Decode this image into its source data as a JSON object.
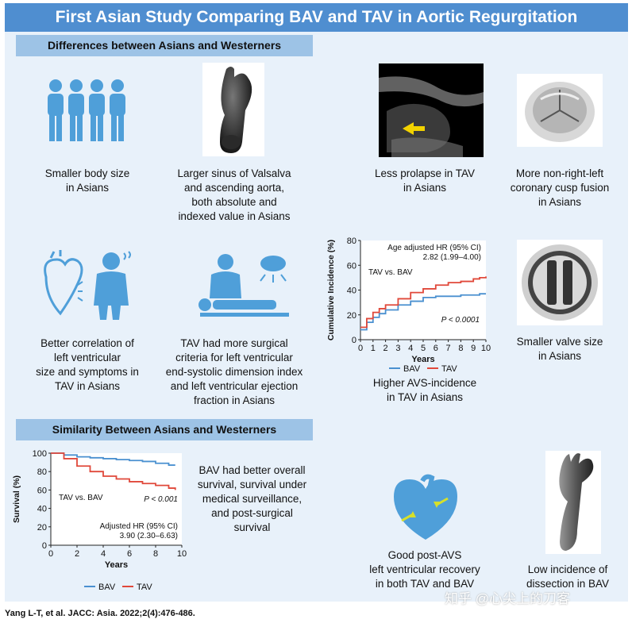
{
  "title": "First Asian Study Comparing BAV and TAV in Aortic Regurgitation",
  "sections": {
    "differences": "Differences between Asians and Westerners",
    "similarity": "Similarity Between Asians and Westerners"
  },
  "captions": {
    "body_size": [
      "Smaller body size",
      "in Asians"
    ],
    "sinus": [
      "Larger sinus of Valsalva",
      "and ascending aorta,",
      "both absolute and",
      "indexed value in Asians"
    ],
    "prolapse": [
      "Less prolapse in TAV",
      "in Asians"
    ],
    "cusp_fusion": [
      "More non-right-left",
      "coronary cusp fusion",
      "in Asians"
    ],
    "correlation": [
      "Better correlation of",
      "left ventricular",
      "size and symptoms in",
      "TAV in Asians"
    ],
    "surgical": [
      "TAV had more surgical",
      "criteria for left ventricular",
      "end-systolic dimension index",
      "and left ventricular ejection",
      "fraction in Asians"
    ],
    "avs": [
      "Higher AVS-incidence",
      "in TAV in Asians"
    ],
    "valve_size": [
      "Smaller valve size",
      "in Asians"
    ],
    "survival": [
      "BAV had better overall",
      "survival, survival under",
      "medical surveillance,",
      "and post-surgical",
      "survival"
    ],
    "recovery": [
      "Good post-AVS",
      "left ventricular recovery",
      "in both TAV and BAV"
    ],
    "dissection": [
      "Low incidence of",
      "dissection in BAV"
    ]
  },
  "citation": "Yang L-T, et al. JACC: Asia. 2022;2(4):476-486.",
  "watermark": "知乎 @心尖上的刀客",
  "colors": {
    "banner": "#4f8ed0",
    "section": "#9dc3e6",
    "panel": "#e8f1fa",
    "icon": "#4f9fd9",
    "bav": "#4a90d0",
    "tav": "#e0483a"
  },
  "chart_data": [
    {
      "type": "line",
      "xlabel": "Years",
      "ylabel": "Cumulative Incidence (%)",
      "xlim": [
        0,
        10
      ],
      "ylim": [
        0,
        80
      ],
      "xticks": [
        "0",
        "1",
        "2",
        "3",
        "4",
        "5",
        "6",
        "7",
        "8",
        "9",
        "10"
      ],
      "yticks": [
        "0",
        "20",
        "40",
        "60",
        "80"
      ],
      "annotations": {
        "group": "TAV vs. BAV",
        "hr_label": "Age adjusted HR (95% CI)",
        "hr_value": "2.82 (1.99–4.00)",
        "p": "P < 0.0001"
      },
      "legend": {
        "placement": "bottom"
      },
      "series": [
        {
          "name": "BAV",
          "x": [
            0,
            0.5,
            1,
            1.5,
            2,
            3,
            4,
            5,
            6,
            7,
            8,
            9,
            9.5,
            10
          ],
          "y": [
            8,
            14,
            18,
            21,
            24,
            28,
            31,
            34,
            35,
            35,
            36,
            36,
            37,
            37
          ]
        },
        {
          "name": "TAV",
          "x": [
            0,
            0.5,
            1,
            1.5,
            2,
            3,
            4,
            5,
            6,
            7,
            8,
            9,
            9.5,
            10
          ],
          "y": [
            10,
            17,
            22,
            25,
            28,
            33,
            38,
            41,
            44,
            46,
            47,
            49,
            50,
            51
          ]
        }
      ]
    },
    {
      "type": "line",
      "xlabel": "Years",
      "ylabel": "Survival (%)",
      "xlim": [
        0,
        10
      ],
      "ylim": [
        0,
        100
      ],
      "xticks": [
        "0",
        "2",
        "4",
        "6",
        "8",
        "10"
      ],
      "yticks": [
        "0",
        "20",
        "40",
        "60",
        "80",
        "100"
      ],
      "annotations": {
        "group": "TAV vs. BAV",
        "p": "P < 0.001",
        "hr_label": "Adjusted HR (95% CI)",
        "hr_value": "3.90 (2.30–6.63)"
      },
      "legend": {
        "placement": "bottom"
      },
      "series": [
        {
          "name": "BAV",
          "x": [
            0,
            1,
            2,
            3,
            4,
            5,
            6,
            7,
            8,
            9,
            9.5
          ],
          "y": [
            100,
            98,
            96,
            95,
            94,
            93,
            92,
            91,
            89,
            87,
            87
          ]
        },
        {
          "name": "TAV",
          "x": [
            0,
            1,
            2,
            3,
            4,
            5,
            6,
            7,
            8,
            9,
            9.5
          ],
          "y": [
            100,
            94,
            86,
            80,
            75,
            72,
            69,
            67,
            65,
            62,
            60
          ]
        }
      ]
    }
  ]
}
